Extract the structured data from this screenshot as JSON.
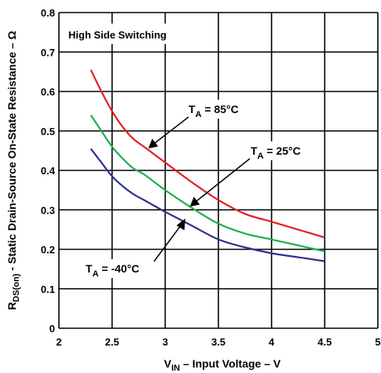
{
  "chart_data": {
    "type": "line",
    "title": "High Side Switching",
    "xlabel": {
      "main": "V",
      "sub": "IN",
      "rest": " – Input Voltage – V"
    },
    "ylabel": {
      "main": "R",
      "sub": "DS(on)",
      "rest": " - Static Drain-Source On-State Resistance – Ω"
    },
    "xlim": [
      2,
      5
    ],
    "ylim": [
      0,
      0.8
    ],
    "x_ticks": [
      "2",
      "2.5",
      "3",
      "3.5",
      "4",
      "4.5",
      "5"
    ],
    "y_ticks": [
      "0",
      "0.1",
      "0.2",
      "0.3",
      "0.4",
      "0.5",
      "0.6",
      "0.7",
      "0.8"
    ],
    "grid": true,
    "series": [
      {
        "name": {
          "main": "T",
          "sub": "A",
          "rest": " = 85°C"
        },
        "color": "#e31e24",
        "x": [
          2.3,
          2.4,
          2.5,
          2.6,
          2.7,
          2.8,
          3.0,
          3.25,
          3.5,
          3.75,
          4.0,
          4.25,
          4.5
        ],
        "y": [
          0.655,
          0.6,
          0.55,
          0.51,
          0.48,
          0.46,
          0.42,
          0.37,
          0.325,
          0.29,
          0.27,
          0.25,
          0.23
        ]
      },
      {
        "name": {
          "main": "T",
          "sub": "A",
          "rest": " = 25°C"
        },
        "color": "#19b04b",
        "x": [
          2.3,
          2.4,
          2.5,
          2.6,
          2.7,
          2.8,
          3.0,
          3.25,
          3.5,
          3.75,
          4.0,
          4.25,
          4.5
        ],
        "y": [
          0.54,
          0.5,
          0.46,
          0.43,
          0.405,
          0.39,
          0.35,
          0.305,
          0.265,
          0.24,
          0.225,
          0.21,
          0.195
        ]
      },
      {
        "name": {
          "main": "T",
          "sub": "A",
          "rest": " = -40°C"
        },
        "color": "#2e3192",
        "x": [
          2.3,
          2.4,
          2.5,
          2.6,
          2.7,
          2.8,
          3.0,
          3.25,
          3.5,
          3.75,
          4.0,
          4.25,
          4.5
        ],
        "y": [
          0.455,
          0.42,
          0.385,
          0.36,
          0.34,
          0.325,
          0.295,
          0.26,
          0.225,
          0.205,
          0.19,
          0.18,
          0.17
        ]
      }
    ]
  }
}
